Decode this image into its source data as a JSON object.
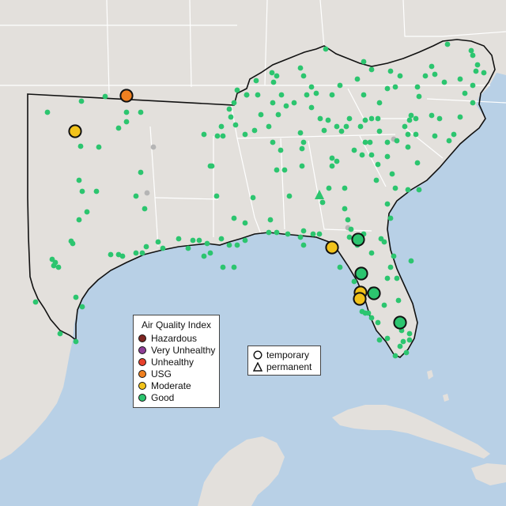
{
  "colors": {
    "ocean": "#b8d0e6",
    "land_out": "#e3e0dc",
    "land_in": "#ebe9e6",
    "border": "#ffffff",
    "outline": "#111111",
    "hazardous": "#7e2622",
    "very_unhealthy": "#8f3f97",
    "unhealthy": "#e8412c",
    "usg": "#f08020",
    "moderate": "#f2c31b",
    "good": "#2cc56f",
    "inactive": "#b5b5b5"
  },
  "aqi_legend": {
    "title": "Air Quality Index",
    "items": [
      {
        "label": "Hazardous",
        "color": "#7e2622"
      },
      {
        "label": "Very Unhealthy",
        "color": "#8f3f97"
      },
      {
        "label": "Unhealthy",
        "color": "#e8412c"
      },
      {
        "label": "USG",
        "color": "#f08020"
      },
      {
        "label": "Moderate",
        "color": "#f2c31b"
      },
      {
        "label": "Good",
        "color": "#2cc56f"
      }
    ]
  },
  "shape_legend": {
    "temporary": "temporary",
    "permanent": "permanent"
  },
  "icons": {
    "temporary": "circle-icon",
    "permanent": "triangle-icon"
  }
}
